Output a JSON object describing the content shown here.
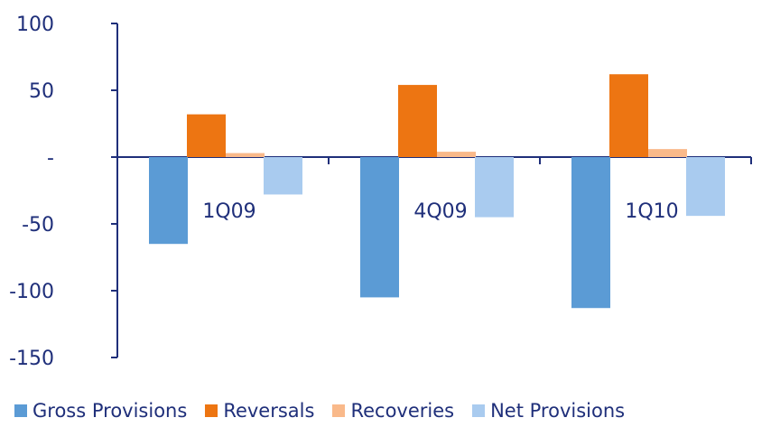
{
  "chart_data": {
    "type": "bar",
    "title": "",
    "xlabel": "",
    "ylabel": "",
    "categories": [
      "1Q09",
      "4Q09",
      "1Q10"
    ],
    "ylim": [
      -150,
      100
    ],
    "y_ticks": [
      {
        "value": 100,
        "label": "100"
      },
      {
        "value": 50,
        "label": "50"
      },
      {
        "value": 0,
        "label": "-"
      },
      {
        "value": -50,
        "label": "-50"
      },
      {
        "value": -100,
        "label": "-100"
      },
      {
        "value": -150,
        "label": "-150"
      }
    ],
    "grid": false,
    "legend_position": "bottom",
    "series": [
      {
        "name": "Gross Provisions",
        "color": "#5b9bd5",
        "values": [
          -65,
          -105,
          -113
        ]
      },
      {
        "name": "Reversals",
        "color": "#ed7512",
        "values": [
          32,
          54,
          62
        ]
      },
      {
        "name": "Recoveries",
        "color": "#f9b98a",
        "values": [
          3,
          4,
          6
        ]
      },
      {
        "name": "Net Provisions",
        "color": "#a9cbef",
        "values": [
          -28,
          -45,
          -44
        ]
      }
    ]
  }
}
